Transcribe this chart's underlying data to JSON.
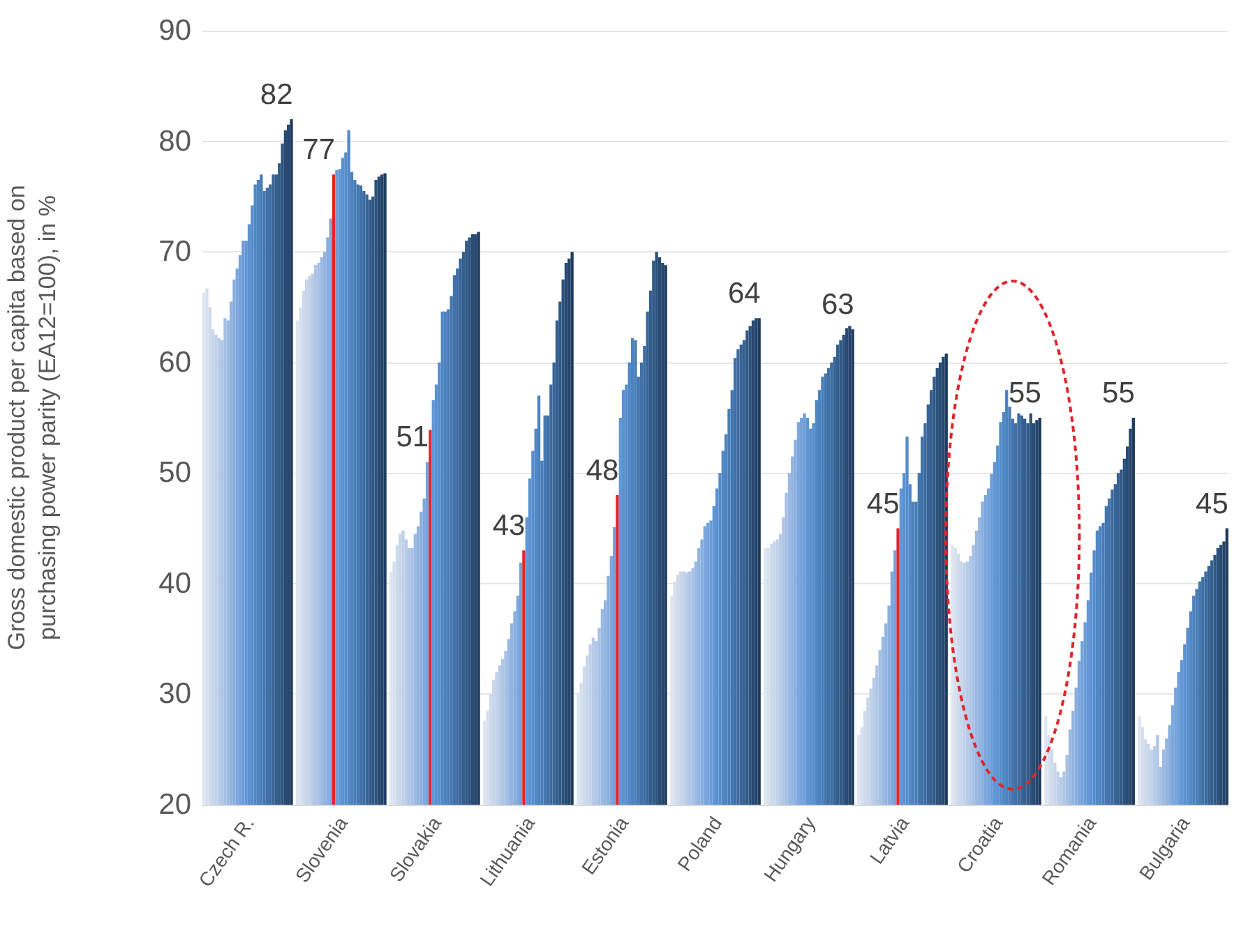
{
  "chart_data": {
    "type": "bar",
    "ylabel": "Gross domestic product per capita based on purchasing power parity (EA12=100), in %",
    "ylim": [
      20,
      90
    ],
    "yticks": [
      20,
      30,
      40,
      50,
      60,
      70,
      80,
      90
    ],
    "grid": "y",
    "categories": [
      null,
      null,
      null,
      null,
      null,
      null,
      null,
      null,
      null,
      null,
      null,
      null,
      null,
      null,
      null,
      "Czech R.",
      null,
      null,
      null,
      null,
      null,
      null,
      null,
      null,
      null,
      null,
      null,
      null,
      null,
      null,
      null,
      null,
      null,
      null,
      null,
      null,
      null,
      null,
      null,
      null,
      null,
      null,
      null,
      null,
      null,
      null,
      "Slovenia",
      null,
      null,
      null,
      null,
      null,
      null,
      null,
      null,
      null,
      null,
      null,
      null,
      null,
      null,
      null,
      null,
      null,
      null,
      null,
      null,
      null,
      null,
      null,
      null,
      null,
      null,
      null,
      null,
      null,
      null,
      "Slovakia",
      null,
      null,
      null,
      null,
      null,
      null,
      null,
      null,
      null,
      null,
      null,
      null,
      null,
      null,
      null,
      null,
      null,
      null,
      null,
      null,
      null,
      null,
      null,
      null,
      null,
      null,
      null,
      null,
      null,
      null,
      "Lithuania",
      null,
      null,
      null,
      null,
      null,
      null,
      null,
      null,
      null,
      null,
      null,
      null,
      null,
      null,
      null,
      null,
      null,
      null,
      null,
      null,
      null,
      null,
      null,
      null,
      null,
      null,
      null,
      null,
      null,
      null,
      "Estonia",
      null,
      null,
      null,
      null,
      null,
      null,
      null,
      null,
      null,
      null,
      null,
      null,
      null,
      null,
      null,
      null,
      null,
      null,
      null,
      null,
      null,
      null,
      null,
      null,
      null,
      null,
      null,
      null,
      null,
      null,
      "Poland",
      null,
      null,
      null,
      null,
      null,
      null,
      null,
      null,
      null,
      null,
      null,
      null,
      null,
      null,
      null,
      null,
      null,
      null,
      null,
      null,
      null,
      null,
      null,
      null,
      null,
      null,
      null,
      null,
      null,
      null,
      "Hungary",
      null,
      null,
      null,
      null,
      null,
      null,
      null,
      null,
      null,
      null,
      null,
      null,
      null,
      null,
      null,
      null,
      null,
      null,
      null,
      null,
      null,
      null,
      null,
      null,
      null,
      null,
      null,
      null,
      null,
      null,
      "Latvia",
      null,
      null,
      null,
      null,
      null,
      null,
      null,
      null,
      null,
      null,
      null,
      null,
      null,
      null,
      null,
      null,
      null,
      null,
      null,
      null,
      null,
      null,
      null,
      null,
      null,
      null,
      null,
      null,
      null,
      null,
      "Croatia",
      null,
      null,
      null,
      null,
      null,
      null,
      null,
      null,
      null,
      null,
      null,
      null,
      null,
      null,
      null,
      null,
      null,
      null,
      null,
      null,
      null,
      null,
      null,
      null,
      null,
      null,
      null,
      null,
      null,
      null,
      "Romania",
      null,
      null,
      null,
      null,
      null,
      null,
      null,
      null,
      null,
      null,
      null,
      null,
      null,
      null,
      null,
      null,
      null,
      null,
      null,
      null,
      null,
      null,
      null,
      null,
      null,
      null,
      null,
      null,
      null,
      null,
      "Bulgaria",
      null,
      null,
      null,
      null,
      null,
      null,
      null,
      null,
      null,
      null,
      null,
      null,
      null,
      null
    ],
    "values": [
      66.3,
      66.7,
      65,
      63,
      62.5,
      62.2,
      62,
      64,
      63.8,
      65.5,
      67.5,
      68.5,
      69.7,
      71,
      71,
      72.5,
      74.2,
      76.1,
      76.5,
      77,
      75.5,
      75.8,
      76.1,
      77,
      77,
      78,
      79.8,
      81,
      81.5,
      82,
      null,
      63.8,
      65,
      66.5,
      67.5,
      67.8,
      68,
      68.8,
      69,
      69.5,
      70,
      71.3,
      73,
      77,
      77.4,
      77.5,
      78.5,
      79,
      81,
      77.2,
      76.5,
      76.1,
      76,
      75.5,
      75.2,
      74.7,
      75,
      76.5,
      76.8,
      77,
      77.1,
      null,
      41.1,
      42,
      43.5,
      44.5,
      44.8,
      44,
      43.2,
      43.2,
      44.5,
      45.2,
      46.5,
      47.7,
      51,
      53.9,
      56.6,
      58,
      60,
      64.6,
      64.6,
      64.8,
      66,
      67.9,
      68.5,
      69.4,
      70,
      71,
      71.3,
      71.6,
      71.6,
      71.8,
      null,
      27.6,
      28.5,
      30,
      31.3,
      32,
      32.6,
      33.2,
      33.9,
      35,
      36.4,
      37.5,
      38.9,
      41.9,
      43,
      46,
      49.5,
      52,
      54,
      57,
      51.1,
      55.2,
      55.2,
      58,
      60,
      63.8,
      65.5,
      67.5,
      69,
      69.4,
      70,
      null,
      30.1,
      31,
      32.5,
      33.5,
      34.5,
      35.1,
      34.8,
      36,
      37.7,
      38.5,
      40.7,
      42.5,
      45.1,
      48,
      55,
      57.5,
      58,
      60,
      62.2,
      62,
      58.7,
      60,
      61.5,
      64.6,
      66.5,
      69.2,
      70,
      69.5,
      69,
      68.8,
      null,
      38.9,
      40.2,
      40.8,
      41.1,
      41.1,
      41,
      41.1,
      41.4,
      42,
      43.2,
      44,
      45.2,
      45.5,
      45.7,
      47,
      48.6,
      50,
      52,
      53.5,
      55.8,
      57.5,
      60.4,
      61.2,
      61.6,
      62,
      62.9,
      63.3,
      63.8,
      64,
      64,
      null,
      43.2,
      43.2,
      43.6,
      43.8,
      44,
      44.5,
      46,
      48.2,
      50,
      51.5,
      53,
      54.6,
      55,
      55.4,
      55,
      54,
      54.5,
      56.6,
      57.5,
      58.7,
      59,
      59.5,
      60,
      60.5,
      61.6,
      62,
      62.5,
      63.1,
      63.3,
      63,
      null,
      26.3,
      27,
      28.5,
      29.7,
      30.5,
      31.5,
      32.6,
      34,
      35.2,
      36.4,
      38,
      41.1,
      43,
      45,
      48.6,
      50,
      53.3,
      49,
      47.4,
      47.4,
      50,
      53.3,
      54.5,
      56.2,
      57.5,
      58.7,
      59.5,
      60,
      60.5,
      60.8,
      null,
      43.5,
      43.2,
      42.7,
      42,
      41.9,
      42,
      42.5,
      43.5,
      44.8,
      46,
      47.4,
      48,
      48.6,
      49.9,
      51,
      52.5,
      54.6,
      55.5,
      57.5,
      56,
      54.9,
      54.5,
      55.4,
      55.2,
      54.9,
      54.5,
      55.4,
      54.5,
      54.8,
      55,
      null,
      28,
      26.3,
      25,
      23.8,
      23,
      22.5,
      23,
      24.5,
      26.8,
      28.5,
      30.6,
      33,
      34.8,
      36.5,
      38.5,
      41,
      43,
      44.8,
      45.2,
      45.5,
      47,
      47.7,
      48.5,
      49,
      50,
      50.3,
      51.3,
      52.4,
      54,
      55,
      null,
      28,
      27,
      25.9,
      25.5,
      25,
      25.3,
      26.3,
      23.4,
      25,
      26,
      27.2,
      29,
      30.6,
      32,
      33.1,
      34.5,
      36,
      37.5,
      38.9,
      39.5,
      40.2,
      40.6,
      41.1,
      41.6,
      42.1,
      42.6,
      43.2,
      43.5,
      43.8,
      45
    ],
    "value_labels": [
      null,
      null,
      null,
      null,
      null,
      null,
      null,
      null,
      null,
      null,
      null,
      null,
      null,
      null,
      null,
      null,
      null,
      null,
      null,
      null,
      null,
      null,
      null,
      null,
      null,
      null,
      null,
      null,
      null,
      "82",
      null,
      null,
      null,
      null,
      null,
      null,
      null,
      null,
      null,
      null,
      null,
      null,
      null,
      "77",
      null,
      null,
      null,
      null,
      null,
      null,
      null,
      null,
      null,
      null,
      null,
      null,
      null,
      null,
      null,
      null,
      null,
      null,
      null,
      null,
      null,
      null,
      null,
      null,
      null,
      null,
      null,
      null,
      null,
      null,
      "51",
      null,
      null,
      null,
      null,
      null,
      null,
      null,
      null,
      null,
      null,
      null,
      null,
      null,
      null,
      null,
      null,
      null,
      null,
      null,
      null,
      null,
      null,
      null,
      null,
      null,
      null,
      null,
      null,
      null,
      null,
      null,
      "43",
      null,
      null,
      null,
      null,
      null,
      null,
      null,
      null,
      null,
      null,
      null,
      null,
      null,
      null,
      null,
      null,
      null,
      null,
      null,
      null,
      null,
      null,
      null,
      null,
      null,
      null,
      null,
      null,
      null,
      null,
      "48",
      null,
      null,
      null,
      null,
      null,
      null,
      null,
      null,
      null,
      null,
      null,
      null,
      null,
      null,
      null,
      null,
      null,
      null,
      null,
      null,
      null,
      null,
      null,
      null,
      null,
      null,
      null,
      null,
      null,
      null,
      null,
      null,
      null,
      null,
      null,
      null,
      null,
      null,
      null,
      null,
      null,
      null,
      null,
      null,
      null,
      null,
      "64",
      null,
      null,
      null,
      null,
      null,
      null,
      null,
      null,
      null,
      null,
      null,
      null,
      null,
      null,
      null,
      null,
      null,
      null,
      null,
      null,
      null,
      null,
      null,
      null,
      null,
      null,
      null,
      null,
      null,
      null,
      "63",
      null,
      null,
      null,
      null,
      null,
      null,
      null,
      null,
      null,
      null,
      null,
      null,
      null,
      null,
      "45",
      null,
      null,
      null,
      null,
      null,
      null,
      null,
      null,
      null,
      null,
      null,
      null,
      null,
      null,
      null,
      null,
      null,
      null,
      null,
      null,
      null,
      null,
      null,
      null,
      null,
      null,
      null,
      null,
      null,
      null,
      null,
      null,
      null,
      null,
      null,
      null,
      null,
      null,
      null,
      null,
      null,
      null,
      null,
      null,
      null,
      null,
      "55",
      null,
      null,
      null,
      null,
      null,
      null,
      null,
      null,
      null,
      null,
      null,
      null,
      null,
      null,
      null,
      null,
      null,
      null,
      null,
      null,
      null,
      null,
      null,
      null,
      null,
      null,
      null,
      null,
      null,
      null,
      "55",
      null,
      null,
      null,
      null,
      null,
      null,
      null,
      null,
      null,
      null,
      null,
      null,
      null,
      null,
      null,
      null,
      null,
      null,
      null,
      null,
      null,
      null,
      null,
      null,
      null,
      null,
      null,
      null,
      null,
      null,
      "45"
    ],
    "colors": [
      "#dde5f1",
      "#d6e0ef",
      "#cfdbed",
      "#c8d6eb",
      "#c0d1e9",
      "#b8cce8",
      "#afc6e6",
      "#a6c0e5",
      "#9cbae3",
      "#92b4e1",
      "#88aedf",
      "#7ea8dd",
      "#74a2db",
      "#6a9cd8",
      "#6197d5",
      "#5a92d1",
      "#558dcc",
      "#5088c6",
      "#4c83bf",
      "#487db8",
      "#4477b0",
      "#4071a8",
      "#3c6ba0",
      "#386598",
      "#345f8f",
      "#305886",
      "#2c527d",
      "#284b74",
      "#24446b",
      "#1f3c61",
      null,
      "#dde5f1",
      "#d6e0ef",
      "#cfdbed",
      "#c8d6eb",
      "#c0d1e9",
      "#b8cce8",
      "#afc6e6",
      "#a6c0e5",
      "#9cbae3",
      "#92b4e1",
      "#88aedf",
      "#7ea8dd",
      "#e3242b",
      "#6a9cd8",
      "#6197d5",
      "#5a92d1",
      "#558dcc",
      "#5088c6",
      "#4c83bf",
      "#487db8",
      "#4477b0",
      "#4071a8",
      "#3c6ba0",
      "#386598",
      "#345f8f",
      "#305886",
      "#2c527d",
      "#284b74",
      "#24446b",
      "#1f3c61",
      null,
      "#dde5f1",
      "#d6e0ef",
      "#cfdbed",
      "#c8d6eb",
      "#c0d1e9",
      "#b8cce8",
      "#afc6e6",
      "#a6c0e5",
      "#9cbae3",
      "#92b4e1",
      "#88aedf",
      "#7ea8dd",
      "#74a2db",
      "#e3242b",
      "#6197d5",
      "#5a92d1",
      "#558dcc",
      "#5088c6",
      "#4c83bf",
      "#487db8",
      "#4477b0",
      "#4071a8",
      "#3c6ba0",
      "#386598",
      "#345f8f",
      "#305886",
      "#2c527d",
      "#284b74",
      "#24446b",
      "#1f3c61",
      null,
      "#dde5f1",
      "#d6e0ef",
      "#cfdbed",
      "#c8d6eb",
      "#c0d1e9",
      "#b8cce8",
      "#afc6e6",
      "#a6c0e5",
      "#9cbae3",
      "#92b4e1",
      "#88aedf",
      "#7ea8dd",
      "#74a2db",
      "#e3242b",
      "#6197d5",
      "#5a92d1",
      "#558dcc",
      "#5088c6",
      "#4c83bf",
      "#487db8",
      "#4477b0",
      "#4071a8",
      "#3c6ba0",
      "#386598",
      "#345f8f",
      "#305886",
      "#2c527d",
      "#284b74",
      "#24446b",
      "#1f3c61",
      null,
      "#dde5f1",
      "#d6e0ef",
      "#cfdbed",
      "#c8d6eb",
      "#c0d1e9",
      "#b8cce8",
      "#afc6e6",
      "#a6c0e5",
      "#9cbae3",
      "#92b4e1",
      "#88aedf",
      "#7ea8dd",
      "#74a2db",
      "#e3242b",
      "#6197d5",
      "#5a92d1",
      "#558dcc",
      "#5088c6",
      "#4c83bf",
      "#487db8",
      "#4477b0",
      "#4071a8",
      "#3c6ba0",
      "#386598",
      "#345f8f",
      "#305886",
      "#2c527d",
      "#284b74",
      "#24446b",
      "#1f3c61",
      null,
      "#dde5f1",
      "#d6e0ef",
      "#cfdbed",
      "#c8d6eb",
      "#c0d1e9",
      "#b8cce8",
      "#afc6e6",
      "#a6c0e5",
      "#9cbae3",
      "#92b4e1",
      "#88aedf",
      "#7ea8dd",
      "#74a2db",
      "#6a9cd8",
      "#6197d5",
      "#5a92d1",
      "#558dcc",
      "#5088c6",
      "#4c83bf",
      "#487db8",
      "#4477b0",
      "#4071a8",
      "#3c6ba0",
      "#386598",
      "#345f8f",
      "#305886",
      "#2c527d",
      "#284b74",
      "#24446b",
      "#1f3c61",
      null,
      "#dde5f1",
      "#d6e0ef",
      "#cfdbed",
      "#c8d6eb",
      "#c0d1e9",
      "#b8cce8",
      "#afc6e6",
      "#a6c0e5",
      "#9cbae3",
      "#92b4e1",
      "#88aedf",
      "#7ea8dd",
      "#74a2db",
      "#6a9cd8",
      "#6197d5",
      "#5a92d1",
      "#558dcc",
      "#5088c6",
      "#4c83bf",
      "#487db8",
      "#4477b0",
      "#4071a8",
      "#3c6ba0",
      "#386598",
      "#345f8f",
      "#305886",
      "#2c527d",
      "#284b74",
      "#24446b",
      "#1f3c61",
      null,
      "#dde5f1",
      "#d6e0ef",
      "#cfdbed",
      "#c8d6eb",
      "#c0d1e9",
      "#b8cce8",
      "#afc6e6",
      "#a6c0e5",
      "#9cbae3",
      "#92b4e1",
      "#88aedf",
      "#7ea8dd",
      "#74a2db",
      "#e3242b",
      "#6197d5",
      "#5a92d1",
      "#558dcc",
      "#5088c6",
      "#4c83bf",
      "#487db8",
      "#4477b0",
      "#4071a8",
      "#3c6ba0",
      "#386598",
      "#345f8f",
      "#305886",
      "#2c527d",
      "#284b74",
      "#24446b",
      "#1f3c61",
      null,
      "#dde5f1",
      "#d6e0ef",
      "#cfdbed",
      "#c8d6eb",
      "#c0d1e9",
      "#b8cce8",
      "#afc6e6",
      "#a6c0e5",
      "#9cbae3",
      "#92b4e1",
      "#88aedf",
      "#7ea8dd",
      "#74a2db",
      "#6a9cd8",
      "#6197d5",
      "#5a92d1",
      "#558dcc",
      "#5088c6",
      "#4c83bf",
      "#487db8",
      "#4477b0",
      "#4071a8",
      "#3c6ba0",
      "#386598",
      "#345f8f",
      "#305886",
      "#2c527d",
      "#284b74",
      "#24446b",
      "#1f3c61",
      null,
      "#dde5f1",
      "#d6e0ef",
      "#cfdbed",
      "#c8d6eb",
      "#c0d1e9",
      "#b8cce8",
      "#afc6e6",
      "#a6c0e5",
      "#9cbae3",
      "#92b4e1",
      "#88aedf",
      "#7ea8dd",
      "#74a2db",
      "#6a9cd8",
      "#6197d5",
      "#5a92d1",
      "#558dcc",
      "#5088c6",
      "#4c83bf",
      "#487db8",
      "#4477b0",
      "#4071a8",
      "#3c6ba0",
      "#386598",
      "#345f8f",
      "#305886",
      "#2c527d",
      "#284b74",
      "#24446b",
      "#1f3c61",
      null,
      "#dde5f1",
      "#d6e0ef",
      "#cfdbed",
      "#c8d6eb",
      "#c0d1e9",
      "#b8cce8",
      "#afc6e6",
      "#a6c0e5",
      "#9cbae3",
      "#92b4e1",
      "#88aedf",
      "#7ea8dd",
      "#74a2db",
      "#6a9cd8",
      "#6197d5",
      "#5a92d1",
      "#558dcc",
      "#5088c6",
      "#4c83bf",
      "#487db8",
      "#4477b0",
      "#4071a8",
      "#3c6ba0",
      "#386598",
      "#345f8f",
      "#305886",
      "#2c527d",
      "#284b74",
      "#24446b",
      "#1f3c61"
    ]
  }
}
